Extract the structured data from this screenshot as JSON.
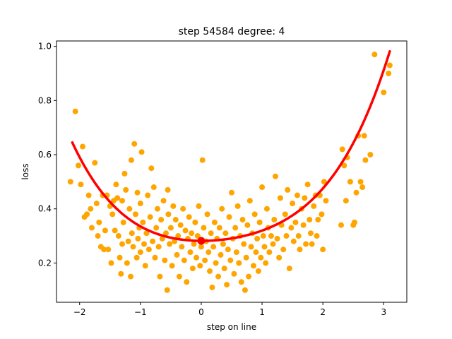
{
  "chart_data": {
    "type": "scatter",
    "title": "step 54584   degree: 4",
    "xlabel": "step on line",
    "ylabel": "loss",
    "xlim": [
      -2.38,
      3.38
    ],
    "ylim": [
      0.055,
      1.02
    ],
    "x_ticks": [
      -2,
      -1,
      0,
      1,
      2,
      3
    ],
    "y_ticks": [
      0.2,
      0.4,
      0.6,
      0.8,
      1.0
    ],
    "x_tick_labels": [
      "−2",
      "−1",
      "0",
      "1",
      "2",
      "3"
    ],
    "y_tick_labels": [
      "0.2",
      "0.4",
      "0.6",
      "0.8",
      "1.0"
    ],
    "grid": false,
    "colors": {
      "points": "#FFA500",
      "fit": "#FF0000"
    },
    "series": [
      {
        "kind": "scatter",
        "points": [
          [
            -2.15,
            0.5
          ],
          [
            -2.07,
            0.76
          ],
          [
            -2.02,
            0.56
          ],
          [
            -1.98,
            0.49
          ],
          [
            -1.95,
            0.63
          ],
          [
            -1.92,
            0.37
          ],
          [
            -1.88,
            0.38
          ],
          [
            -1.85,
            0.45
          ],
          [
            -1.82,
            0.4
          ],
          [
            -1.8,
            0.33
          ],
          [
            -1.75,
            0.57
          ],
          [
            -1.72,
            0.42
          ],
          [
            -1.7,
            0.3
          ],
          [
            -1.68,
            0.35
          ],
          [
            -1.65,
            0.26
          ],
          [
            -1.62,
            0.45
          ],
          [
            -1.6,
            0.25
          ],
          [
            -1.58,
            0.32
          ],
          [
            -1.55,
            0.45
          ],
          [
            -1.53,
            0.25
          ],
          [
            -1.5,
            0.41
          ],
          [
            -1.48,
            0.2
          ],
          [
            -1.46,
            0.38
          ],
          [
            -1.44,
            0.43
          ],
          [
            -1.42,
            0.32
          ],
          [
            -1.4,
            0.49
          ],
          [
            -1.38,
            0.44
          ],
          [
            -1.36,
            0.3
          ],
          [
            -1.34,
            0.22
          ],
          [
            -1.32,
            0.16
          ],
          [
            -1.3,
            0.27
          ],
          [
            -1.3,
            0.43
          ],
          [
            -1.28,
            0.35
          ],
          [
            -1.26,
            0.53
          ],
          [
            -1.24,
            0.47
          ],
          [
            -1.22,
            0.2
          ],
          [
            -1.2,
            0.28
          ],
          [
            -1.18,
            0.4
          ],
          [
            -1.16,
            0.15
          ],
          [
            -1.15,
            0.58
          ],
          [
            -1.14,
            0.31
          ],
          [
            -1.12,
            0.26
          ],
          [
            -1.1,
            0.64
          ],
          [
            -1.08,
            0.38
          ],
          [
            -1.06,
            0.22
          ],
          [
            -1.05,
            0.46
          ],
          [
            -1.04,
            0.29
          ],
          [
            -1.02,
            0.33
          ],
          [
            -1.0,
            0.24
          ],
          [
            -1.0,
            0.42
          ],
          [
            -0.98,
            0.61
          ],
          [
            -0.96,
            0.35
          ],
          [
            -0.94,
            0.27
          ],
          [
            -0.92,
            0.19
          ],
          [
            -0.9,
            0.31
          ],
          [
            -0.88,
            0.45
          ],
          [
            -0.86,
            0.25
          ],
          [
            -0.84,
            0.37
          ],
          [
            -0.82,
            0.55
          ],
          [
            -0.8,
            0.28
          ],
          [
            -0.78,
            0.48
          ],
          [
            -0.76,
            0.22
          ],
          [
            -0.74,
            0.33
          ],
          [
            -0.72,
            0.4
          ],
          [
            -0.7,
            0.26
          ],
          [
            -0.68,
            0.15
          ],
          [
            -0.66,
            0.36
          ],
          [
            -0.64,
            0.29
          ],
          [
            -0.62,
            0.43
          ],
          [
            -0.6,
            0.21
          ],
          [
            -0.58,
            0.31
          ],
          [
            -0.56,
            0.1
          ],
          [
            -0.55,
            0.47
          ],
          [
            -0.54,
            0.38
          ],
          [
            -0.52,
            0.27
          ],
          [
            -0.5,
            0.33
          ],
          [
            -0.48,
            0.19
          ],
          [
            -0.46,
            0.41
          ],
          [
            -0.44,
            0.28
          ],
          [
            -0.42,
            0.36
          ],
          [
            -0.4,
            0.23
          ],
          [
            -0.38,
            0.3
          ],
          [
            -0.36,
            0.15
          ],
          [
            -0.34,
            0.34
          ],
          [
            -0.32,
            0.26
          ],
          [
            -0.3,
            0.4
          ],
          [
            -0.28,
            0.21
          ],
          [
            -0.26,
            0.32
          ],
          [
            -0.24,
            0.13
          ],
          [
            -0.22,
            0.29
          ],
          [
            -0.2,
            0.37
          ],
          [
            -0.18,
            0.24
          ],
          [
            -0.16,
            0.31
          ],
          [
            -0.14,
            0.18
          ],
          [
            -0.12,
            0.27
          ],
          [
            -0.1,
            0.35
          ],
          [
            -0.08,
            0.22
          ],
          [
            -0.06,
            0.3
          ],
          [
            -0.04,
            0.41
          ],
          [
            -0.02,
            0.19
          ],
          [
            0.0,
            0.26
          ],
          [
            0.02,
            0.58
          ],
          [
            0.04,
            0.33
          ],
          [
            0.06,
            0.21
          ],
          [
            0.08,
            0.28
          ],
          [
            0.1,
            0.38
          ],
          [
            0.12,
            0.24
          ],
          [
            0.14,
            0.17
          ],
          [
            0.16,
            0.31
          ],
          [
            0.18,
            0.11
          ],
          [
            0.2,
            0.26
          ],
          [
            0.22,
            0.35
          ],
          [
            0.24,
            0.2
          ],
          [
            0.26,
            0.29
          ],
          [
            0.28,
            0.15
          ],
          [
            0.3,
            0.33
          ],
          [
            0.32,
            0.23
          ],
          [
            0.34,
            0.4
          ],
          [
            0.36,
            0.27
          ],
          [
            0.38,
            0.18
          ],
          [
            0.4,
            0.31
          ],
          [
            0.42,
            0.12
          ],
          [
            0.44,
            0.25
          ],
          [
            0.46,
            0.37
          ],
          [
            0.48,
            0.21
          ],
          [
            0.5,
            0.46
          ],
          [
            0.52,
            0.29
          ],
          [
            0.54,
            0.16
          ],
          [
            0.56,
            0.33
          ],
          [
            0.58,
            0.24
          ],
          [
            0.6,
            0.41
          ],
          [
            0.62,
            0.2
          ],
          [
            0.64,
            0.3
          ],
          [
            0.66,
            0.13
          ],
          [
            0.68,
            0.36
          ],
          [
            0.7,
            0.27
          ],
          [
            0.72,
            0.1
          ],
          [
            0.74,
            0.22
          ],
          [
            0.76,
            0.34
          ],
          [
            0.78,
            0.15
          ],
          [
            0.8,
            0.43
          ],
          [
            0.82,
            0.26
          ],
          [
            0.84,
            0.31
          ],
          [
            0.86,
            0.19
          ],
          [
            0.88,
            0.38
          ],
          [
            0.9,
            0.24
          ],
          [
            0.92,
            0.29
          ],
          [
            0.94,
            0.17
          ],
          [
            0.96,
            0.35
          ],
          [
            0.98,
            0.22
          ],
          [
            1.0,
            0.48
          ],
          [
            1.02,
            0.3
          ],
          [
            1.04,
            0.26
          ],
          [
            1.06,
            0.2
          ],
          [
            1.08,
            0.4
          ],
          [
            1.1,
            0.33
          ],
          [
            1.12,
            0.24
          ],
          [
            1.15,
            0.3
          ],
          [
            1.18,
            0.27
          ],
          [
            1.2,
            0.36
          ],
          [
            1.22,
            0.52
          ],
          [
            1.25,
            0.29
          ],
          [
            1.28,
            0.22
          ],
          [
            1.3,
            0.44
          ],
          [
            1.32,
            0.34
          ],
          [
            1.35,
            0.25
          ],
          [
            1.38,
            0.38
          ],
          [
            1.4,
            0.3
          ],
          [
            1.42,
            0.47
          ],
          [
            1.45,
            0.18
          ],
          [
            1.48,
            0.33
          ],
          [
            1.5,
            0.42
          ],
          [
            1.52,
            0.28
          ],
          [
            1.55,
            0.35
          ],
          [
            1.58,
            0.45
          ],
          [
            1.6,
            0.3
          ],
          [
            1.62,
            0.25
          ],
          [
            1.65,
            0.4
          ],
          [
            1.68,
            0.34
          ],
          [
            1.7,
            0.44
          ],
          [
            1.72,
            0.27
          ],
          [
            1.75,
            0.49
          ],
          [
            1.78,
            0.36
          ],
          [
            1.8,
            0.31
          ],
          [
            1.82,
            0.27
          ],
          [
            1.85,
            0.41
          ],
          [
            1.88,
            0.45
          ],
          [
            1.9,
            0.3
          ],
          [
            1.92,
            0.36
          ],
          [
            1.95,
            0.45
          ],
          [
            1.98,
            0.38
          ],
          [
            2.0,
            0.25
          ],
          [
            2.02,
            0.5
          ],
          [
            2.05,
            0.43
          ],
          [
            2.3,
            0.34
          ],
          [
            2.32,
            0.62
          ],
          [
            2.35,
            0.56
          ],
          [
            2.38,
            0.43
          ],
          [
            2.4,
            0.59
          ],
          [
            2.45,
            0.5
          ],
          [
            2.5,
            0.34
          ],
          [
            2.52,
            0.35
          ],
          [
            2.55,
            0.46
          ],
          [
            2.58,
            0.67
          ],
          [
            2.62,
            0.5
          ],
          [
            2.65,
            0.48
          ],
          [
            2.68,
            0.67
          ],
          [
            2.7,
            0.58
          ],
          [
            2.78,
            0.6
          ],
          [
            2.85,
            0.97
          ],
          [
            3.0,
            0.83
          ],
          [
            3.08,
            0.9
          ],
          [
            3.1,
            0.93
          ]
        ]
      },
      {
        "kind": "fit",
        "name": "",
        "coefficients": [
          0.2818,
          -0.0008,
          0.04,
          -0.007,
          0.0057
        ],
        "x_range": [
          -2.12,
          3.1
        ]
      },
      {
        "kind": "marker",
        "points": [
          [
            0.0,
            0.2818
          ]
        ]
      }
    ]
  }
}
